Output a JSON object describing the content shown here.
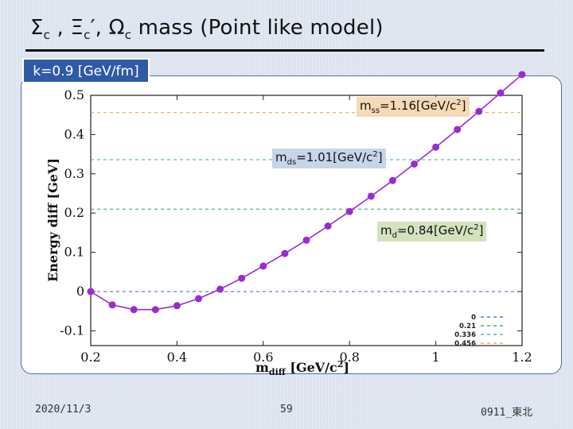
{
  "slide": {
    "title_parts": [
      "Σ",
      "c",
      " , Ξ",
      "c",
      "′, Ω",
      "c",
      " mass (Point like model)"
    ],
    "k_label": "k=0.9 [GeV/fm]"
  },
  "annotations": {
    "mss": {
      "m": "m",
      "sub": "ss",
      "mid": "=1.16[GeV/c",
      "sup": "2",
      "end": "]",
      "bg": "#f7d9b5"
    },
    "mds": {
      "m": "m",
      "sub": "ds",
      "mid": "=1.01[GeV/c",
      "sup": "2",
      "end": "]",
      "bg": "#c5d6ea"
    },
    "md": {
      "m": "m",
      "sub": "d",
      "mid": "=0.84[GeV/c",
      "sup": "2",
      "end": "]",
      "bg": "#d4e2be"
    }
  },
  "footer": {
    "date": "2020/11/3",
    "page": "59",
    "tag": "0911_東北"
  },
  "chart_data": {
    "type": "line",
    "xlabel": "m_diff [GeV/c^2]",
    "ylabel": "Energy diff [GeV]",
    "xlim": [
      0.2,
      1.2
    ],
    "ylim": [
      -0.15,
      0.5
    ],
    "x_ticks": [
      "0.2",
      "0.4",
      "0.6",
      "0.8",
      "1",
      "1.2"
    ],
    "x_tick_values": [
      0.2,
      0.4,
      0.6,
      0.8,
      1.0,
      1.2
    ],
    "y_ticks": [
      "-0.1",
      "0",
      "0.1",
      "0.2",
      "0.3",
      "0.4",
      "0.5"
    ],
    "y_tick_values": [
      -0.1,
      0,
      0.1,
      0.2,
      0.3,
      0.4,
      0.5
    ],
    "grid": false,
    "legend_placement": "bottom-right",
    "series": [
      {
        "color": "#9a2bd1",
        "x": [
          0.2,
          0.25,
          0.3,
          0.35,
          0.4,
          0.45,
          0.5,
          0.55,
          0.6,
          0.65,
          0.7,
          0.75,
          0.8,
          0.85,
          0.9,
          0.95,
          1.0,
          1.05,
          1.1,
          1.15,
          1.2
        ],
        "y": [
          0.0,
          -0.034,
          -0.046,
          -0.046,
          -0.036,
          -0.018,
          0.006,
          0.034,
          0.065,
          0.097,
          0.131,
          0.167,
          0.204,
          0.243,
          0.283,
          0.325,
          0.368,
          0.413,
          0.459,
          0.506,
          0.553
        ]
      }
    ],
    "reference_lines": [
      {
        "label": "0",
        "y": 0,
        "color": "#3a5fcd"
      },
      {
        "label": "0.21",
        "y": 0.21,
        "color": "#2e9e5b"
      },
      {
        "label": "0.336",
        "y": 0.336,
        "color": "#3aa6a6"
      },
      {
        "label": "0.456",
        "y": 0.456,
        "color": "#e0a030"
      }
    ]
  }
}
